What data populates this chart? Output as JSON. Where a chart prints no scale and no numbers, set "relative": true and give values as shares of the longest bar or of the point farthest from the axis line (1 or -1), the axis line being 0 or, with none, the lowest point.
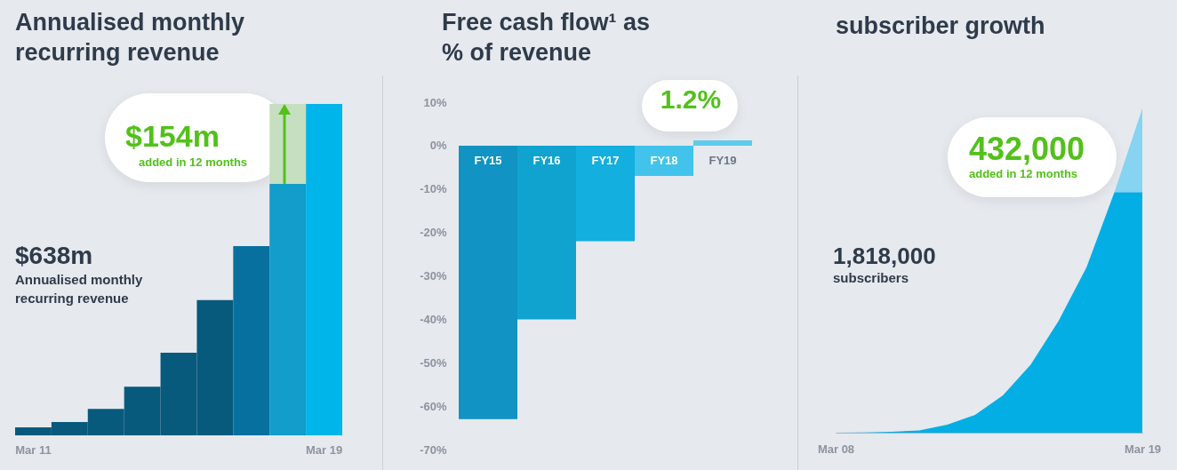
{
  "chart_data": [
    {
      "type": "bar",
      "title": "Annualised monthly recurring revenue",
      "categories": [
        "Mar 11",
        null,
        null,
        null,
        null,
        null,
        null,
        null,
        "Mar 19"
      ],
      "relative": true,
      "stacked": true,
      "series": [
        {
          "colors": [
            "#085a7c",
            "#085a7c",
            "#085a7c",
            "#085a7c",
            "#085a7c",
            "#085a7c",
            "#07709e",
            "#129dcb",
            "#00b5ea"
          ],
          "values": [
            0.024,
            0.04,
            0.08,
            0.147,
            0.249,
            0.408,
            0.571,
            0.759,
            1
          ]
        },
        {
          "color": "#c6dfc0",
          "values": [
            null,
            null,
            null,
            null,
            null,
            null,
            null,
            0.241,
            null
          ]
        }
      ],
      "annotations": [
        "$638m",
        "Annualised monthly recurring revenue",
        "$154m",
        "added in 12 months"
      ]
    },
    {
      "type": "bar",
      "title": "Free cash flow¹ as % of revenue",
      "categories": [
        "FY15",
        "FY16",
        "FY17",
        "FY18",
        "FY19"
      ],
      "series": [
        {
          "colors": [
            "#1193c3",
            "#10a3d0",
            "#12afdf",
            "#41c3ec",
            "#5fcbec"
          ],
          "values": [
            -63,
            -40,
            -22,
            -7,
            1.2
          ],
          "value_labels": [
            null,
            null,
            null,
            null,
            "1.2%"
          ]
        }
      ],
      "ylim": [
        -70,
        10
      ],
      "yticks": [
        {
          "value": 10,
          "label": "10%"
        },
        {
          "value": 0,
          "label": "0%"
        },
        {
          "value": -10,
          "label": "-10%"
        },
        {
          "value": -20,
          "label": "-20%"
        },
        {
          "value": -30,
          "label": "-30%"
        },
        {
          "value": -40,
          "label": "-40%"
        },
        {
          "value": -50,
          "label": "-50%"
        },
        {
          "value": -60,
          "label": "-60%"
        },
        {
          "value": -70,
          "label": "-70%"
        }
      ]
    },
    {
      "type": "area",
      "title": "subscriber growth",
      "relative": true,
      "stacked": true,
      "categories": [
        "Mar 08",
        null,
        null,
        null,
        null,
        null,
        null,
        null,
        null,
        null,
        null,
        "Mar 19"
      ],
      "series": [
        {
          "color": "#03aee4",
          "values": [
            0,
            0.001,
            0.003,
            0.007,
            0.025,
            0.055,
            0.115,
            0.21,
            0.345,
            0.51,
            0.742,
            0.742
          ]
        },
        {
          "color": "#86d4f1",
          "values": [
            null,
            null,
            null,
            null,
            null,
            null,
            null,
            null,
            null,
            null,
            0,
            0.258
          ]
        }
      ],
      "annotations": [
        "432,000",
        "added in 12 months",
        "1,818,000",
        "subscribers"
      ]
    }
  ]
}
